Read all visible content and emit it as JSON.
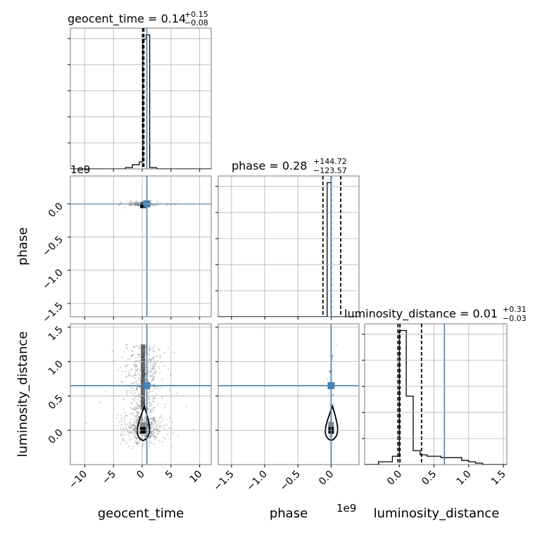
{
  "truth_color": "#4682b4",
  "titles": {
    "geocent_time": {
      "name": "geocent_time",
      "median": "0.14",
      "upper": "+0.15",
      "lower": "−0.08"
    },
    "phase": {
      "name": "phase",
      "median": "0.28",
      "upper": "+144.72",
      "lower": "−123.57"
    },
    "luminosity_distance": {
      "name": "luminosity_distance",
      "median": "0.01",
      "upper": "+0.31",
      "lower": "−0.03"
    }
  },
  "labels": {
    "x_geocent_time": "geocent_time",
    "x_phase": "phase",
    "x_luminosity_distance": "luminosity_distance",
    "y_phase": "phase",
    "y_luminosity_distance": "luminosity_distance"
  },
  "offsets": {
    "phase_y": "1e9",
    "phase_x": "1e9"
  },
  "chart_data": {
    "type": "scatter",
    "subtype": "corner plot",
    "parameters": [
      "geocent_time",
      "phase",
      "luminosity_distance"
    ],
    "axes": {
      "geocent_time": {
        "range": [
          -12.5,
          12
        ],
        "ticks": [
          -10,
          -5,
          0,
          5,
          10
        ],
        "tick_labels": [
          "−10",
          "−5",
          "0",
          "5",
          "10"
        ]
      },
      "phase": {
        "range": [
          -1.7,
          0.42
        ],
        "scale": "1e9",
        "ticks": [
          -1.5,
          -1.0,
          -0.5,
          0.0
        ],
        "tick_labels": [
          "−1.5",
          "−1.0",
          "−0.5",
          "0.0"
        ]
      },
      "luminosity_distance": {
        "range": [
          -0.5,
          1.55
        ],
        "ticks": [
          0.0,
          0.5,
          1.0,
          1.5
        ],
        "tick_labels": [
          "0.0",
          "0.5",
          "1.0",
          "1.5"
        ]
      }
    },
    "truths": {
      "geocent_time": 0.8,
      "phase": 0.0,
      "luminosity_distance": 0.65
    },
    "quantiles": {
      "geocent_time": [
        0.06,
        0.14,
        0.29
      ],
      "phase": [
        -0.1235,
        0.0,
        0.1447
      ],
      "luminosity_distance": [
        -0.02,
        0.01,
        0.32
      ]
    },
    "histograms": {
      "geocent_time": {
        "bins": [
          -12.5,
          -11.3,
          -10.1,
          -8.9,
          -7.7,
          -6.5,
          -5.3,
          -4.1,
          -2.9,
          -1.7,
          -0.5,
          0.1,
          0.7,
          1.3,
          2.5,
          3.7,
          4.9,
          6.1,
          7.3,
          8.5,
          9.7,
          10.9,
          12.0
        ],
        "counts": [
          0,
          0,
          0,
          0,
          0,
          0,
          0,
          0,
          1,
          3,
          5,
          92,
          95,
          1,
          0,
          0,
          0,
          0,
          0,
          0,
          0,
          0
        ]
      },
      "phase": {
        "bins": [
          -1.7,
          -0.06,
          0.0,
          0.42
        ],
        "counts": [
          0,
          100,
          0
        ]
      },
      "luminosity_distance": {
        "bins": [
          -0.5,
          -0.3,
          -0.1,
          0.0,
          0.1,
          0.2,
          0.3,
          0.4,
          0.5,
          0.6,
          0.7,
          0.8,
          0.9,
          1.0,
          1.1,
          1.2,
          1.3,
          1.4,
          1.55
        ],
        "counts": [
          0,
          2,
          6,
          96,
          49,
          10,
          7,
          6,
          6,
          5,
          5,
          5,
          3,
          2,
          1,
          0,
          0,
          0
        ]
      }
    }
  }
}
